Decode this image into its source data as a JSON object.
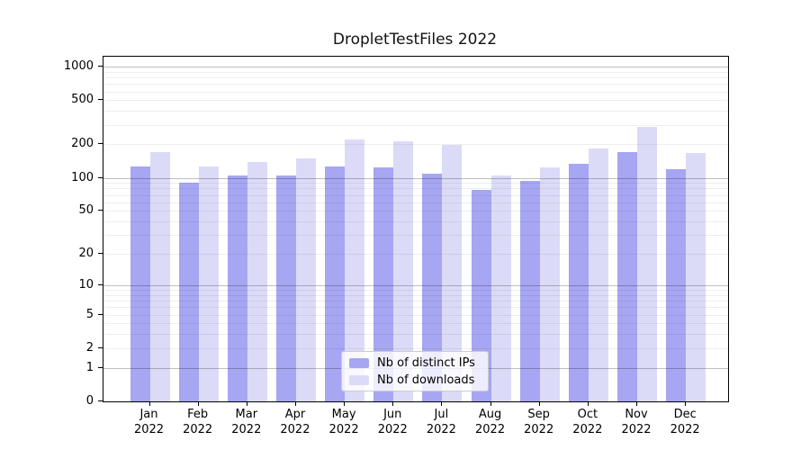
{
  "title": "DropletTestFiles 2022",
  "legend": {
    "items": [
      {
        "label": "Nb of distinct IPs",
        "color": "#a6a6f2"
      },
      {
        "label": "Nb of downloads",
        "color": "#dbdbf8"
      }
    ]
  },
  "chart_data": {
    "type": "bar",
    "title": "DropletTestFiles 2022",
    "xlabel": "",
    "ylabel": "",
    "y_scale": "symlog",
    "ylim": [
      0,
      1228
    ],
    "y_ticks": [
      0,
      1,
      2,
      5,
      10,
      20,
      50,
      100,
      200,
      500,
      1000
    ],
    "grid": true,
    "legend_position": "lower center",
    "categories": [
      "Jan 2022",
      "Feb 2022",
      "Mar 2022",
      "Apr 2022",
      "May 2022",
      "Jun 2022",
      "Jul 2022",
      "Aug 2022",
      "Sep 2022",
      "Oct 2022",
      "Nov 2022",
      "Dec 2022"
    ],
    "series": [
      {
        "name": "Nb of distinct IPs",
        "color": "#a6a6f2",
        "values": [
          127,
          91,
          104,
          104,
          127,
          124,
          108,
          78,
          94,
          133,
          171,
          119
        ]
      },
      {
        "name": "Nb of downloads",
        "color": "#dbdbf8",
        "values": [
          172,
          127,
          140,
          151,
          223,
          213,
          197,
          105,
          124,
          185,
          286,
          169
        ]
      }
    ]
  }
}
